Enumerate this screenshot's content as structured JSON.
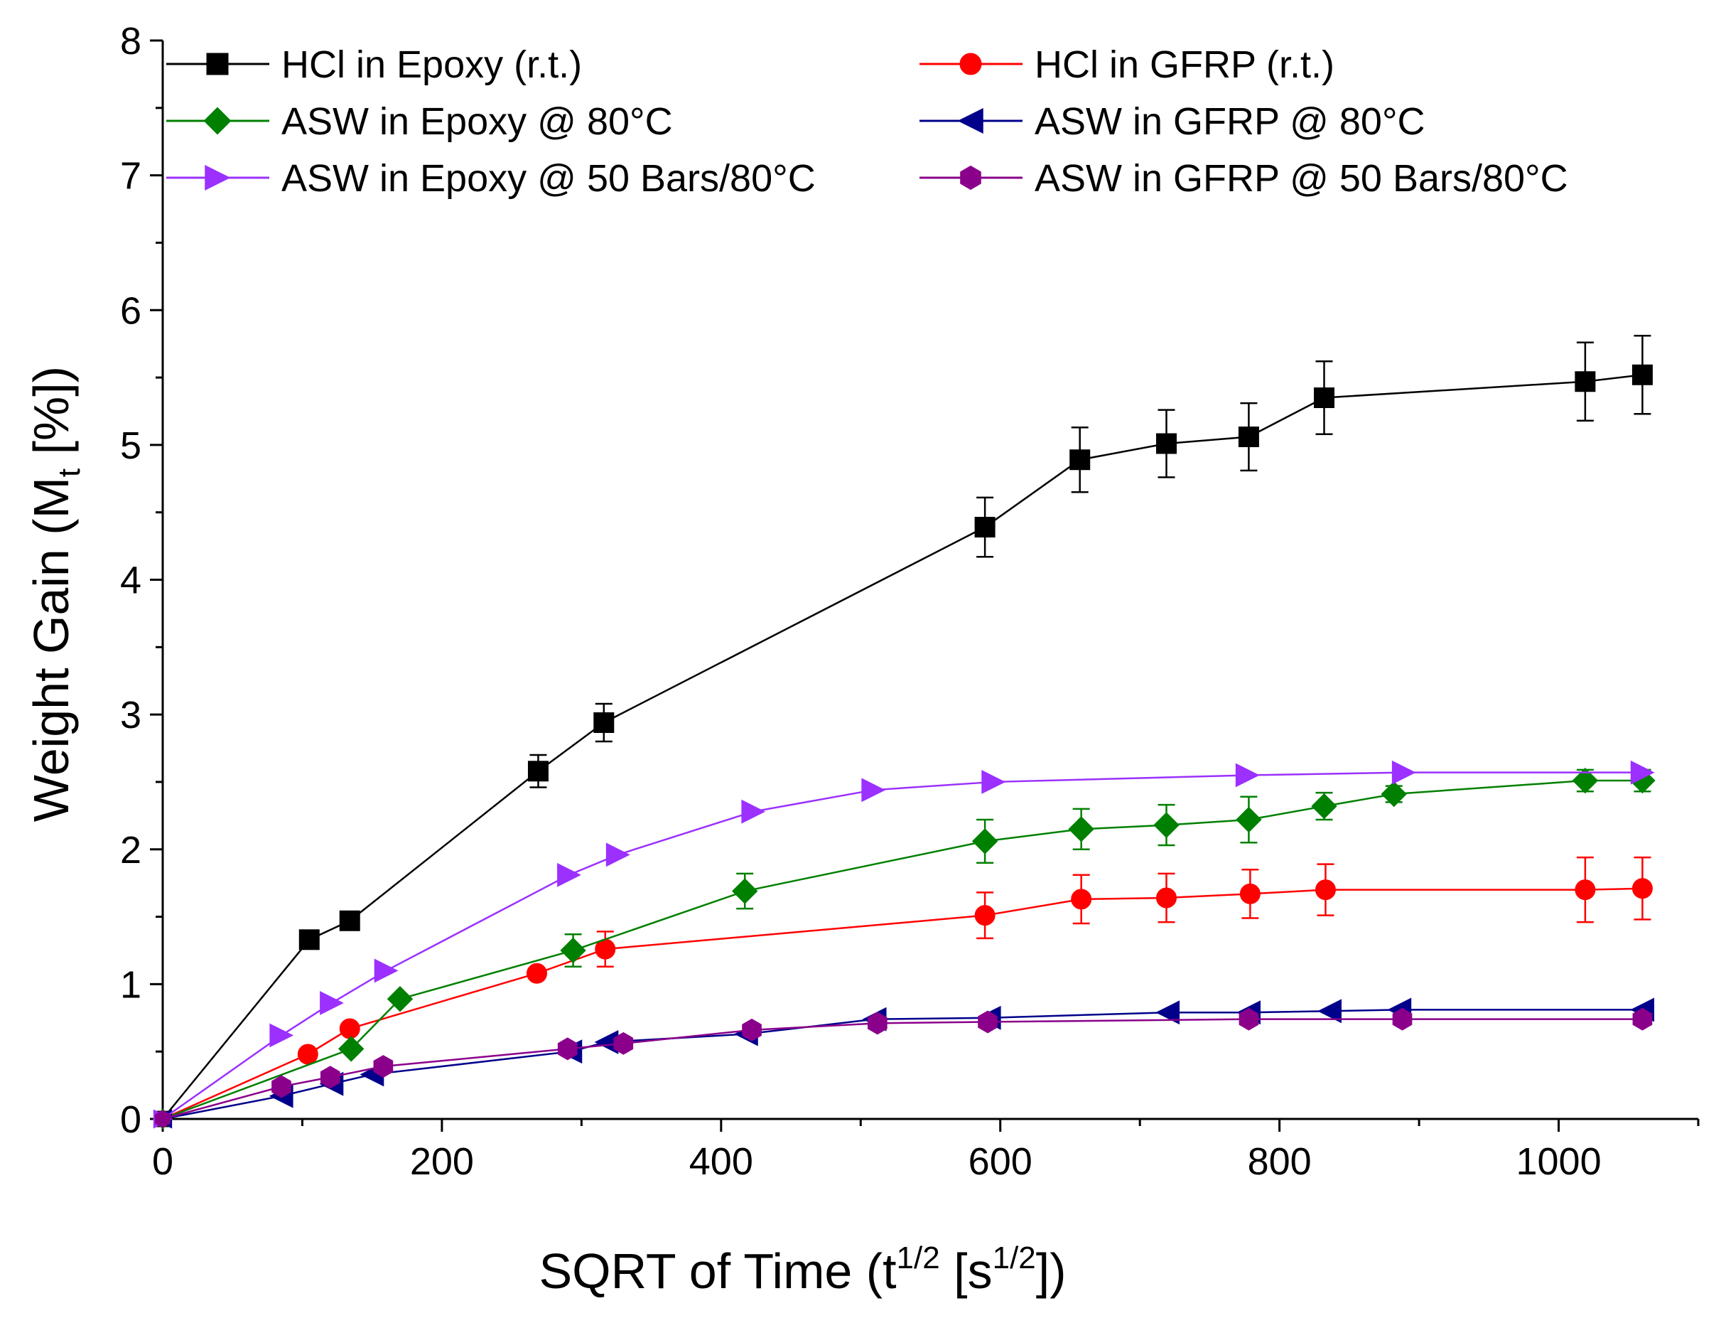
{
  "chart_data": {
    "type": "line",
    "title": "",
    "xlabel": "SQRT of Time (t^{1/2} [s^{1/2}])",
    "ylabel": "Weight Gain (M_t [%])",
    "xlabel_parts": [
      "SQRT of Time (t",
      "1/2",
      " [s",
      "1/2",
      "])"
    ],
    "ylabel_parts": [
      "Weight Gain (M",
      "t",
      " [%])"
    ],
    "xlim": [
      0,
      1100
    ],
    "ylim": [
      0,
      8
    ],
    "xticks": [
      0,
      200,
      400,
      600,
      800,
      1000
    ],
    "yticks": [
      0,
      1,
      2,
      3,
      4,
      5,
      6,
      7,
      8
    ],
    "xtick_labels": [
      "0",
      "200",
      "400",
      "600",
      "800",
      "1000"
    ],
    "ytick_labels": [
      "0",
      "1",
      "2",
      "3",
      "4",
      "5",
      "6",
      "7",
      "8"
    ],
    "grid": false,
    "legend_position": "top",
    "series": [
      {
        "name": "HCl in Epoxy (r.t.)",
        "color": "#000000",
        "marker": "square",
        "x": [
          0,
          105,
          134,
          269,
          316,
          589,
          657,
          719,
          778,
          832,
          1019,
          1060
        ],
        "y": [
          0,
          1.33,
          1.47,
          2.58,
          2.94,
          4.39,
          4.89,
          5.01,
          5.06,
          5.35,
          5.47,
          5.52
        ],
        "err": [
          0,
          0,
          0,
          0.12,
          0.14,
          0.22,
          0.24,
          0.25,
          0.25,
          0.27,
          0.29,
          0.29
        ]
      },
      {
        "name": "HCl in GFRP (r.t.)",
        "color": "#ff0000",
        "marker": "circle",
        "x": [
          0,
          104,
          134,
          268,
          317,
          589,
          658,
          719,
          779,
          833,
          1019,
          1060
        ],
        "y": [
          0,
          0.48,
          0.67,
          1.08,
          1.26,
          1.51,
          1.63,
          1.64,
          1.67,
          1.7,
          1.7,
          1.71
        ],
        "err": [
          0,
          0,
          0,
          0,
          0.13,
          0.17,
          0.18,
          0.18,
          0.18,
          0.19,
          0.24,
          0.23
        ]
      },
      {
        "name": "ASW in Epoxy @ 80°C",
        "color": "#008000",
        "marker": "diamond",
        "x": [
          0,
          135,
          170,
          294,
          417,
          589,
          658,
          719,
          778,
          832,
          882,
          1019,
          1060
        ],
        "y": [
          0,
          0.52,
          0.89,
          1.25,
          1.69,
          2.06,
          2.15,
          2.18,
          2.22,
          2.32,
          2.41,
          2.51,
          2.51
        ],
        "err": [
          0,
          0,
          0,
          0.12,
          0.13,
          0.16,
          0.15,
          0.15,
          0.17,
          0.1,
          0.06,
          0.08,
          0.08
        ]
      },
      {
        "name": "ASW in GFRP @ 80°C",
        "color": "#00008b",
        "marker": "triangle-left",
        "x": [
          0,
          85,
          121,
          150,
          292,
          318,
          418,
          510,
          592,
          720,
          778,
          836,
          886,
          1060
        ],
        "y": [
          0,
          0.17,
          0.26,
          0.33,
          0.5,
          0.57,
          0.63,
          0.74,
          0.75,
          0.79,
          0.79,
          0.8,
          0.81,
          0.81
        ],
        "err": [
          0,
          0,
          0,
          0,
          0,
          0,
          0,
          0,
          0,
          0,
          0,
          0,
          0,
          0
        ]
      },
      {
        "name": "ASW in Epoxy @ 50 Bars/80°C",
        "color": "#9b30ff",
        "marker": "triangle-right",
        "x": [
          0,
          85,
          121,
          160,
          291,
          326,
          423,
          509,
          595,
          777,
          889,
          1060
        ],
        "y": [
          0,
          0.62,
          0.86,
          1.1,
          1.81,
          1.96,
          2.28,
          2.44,
          2.5,
          2.55,
          2.57,
          2.57
        ],
        "err": [
          0,
          0,
          0,
          0,
          0,
          0,
          0,
          0,
          0,
          0,
          0,
          0
        ]
      },
      {
        "name": "ASW in GFRP @ 50 Bars/80°C",
        "color": "#8b008b",
        "marker": "hexagon",
        "x": [
          0,
          85,
          120,
          158,
          290,
          330,
          422,
          512,
          591,
          778,
          888,
          1060
        ],
        "y": [
          0,
          0.24,
          0.31,
          0.39,
          0.52,
          0.56,
          0.66,
          0.71,
          0.72,
          0.74,
          0.74,
          0.74
        ],
        "err": [
          0,
          0,
          0,
          0,
          0,
          0,
          0,
          0,
          0,
          0,
          0,
          0
        ]
      }
    ]
  }
}
